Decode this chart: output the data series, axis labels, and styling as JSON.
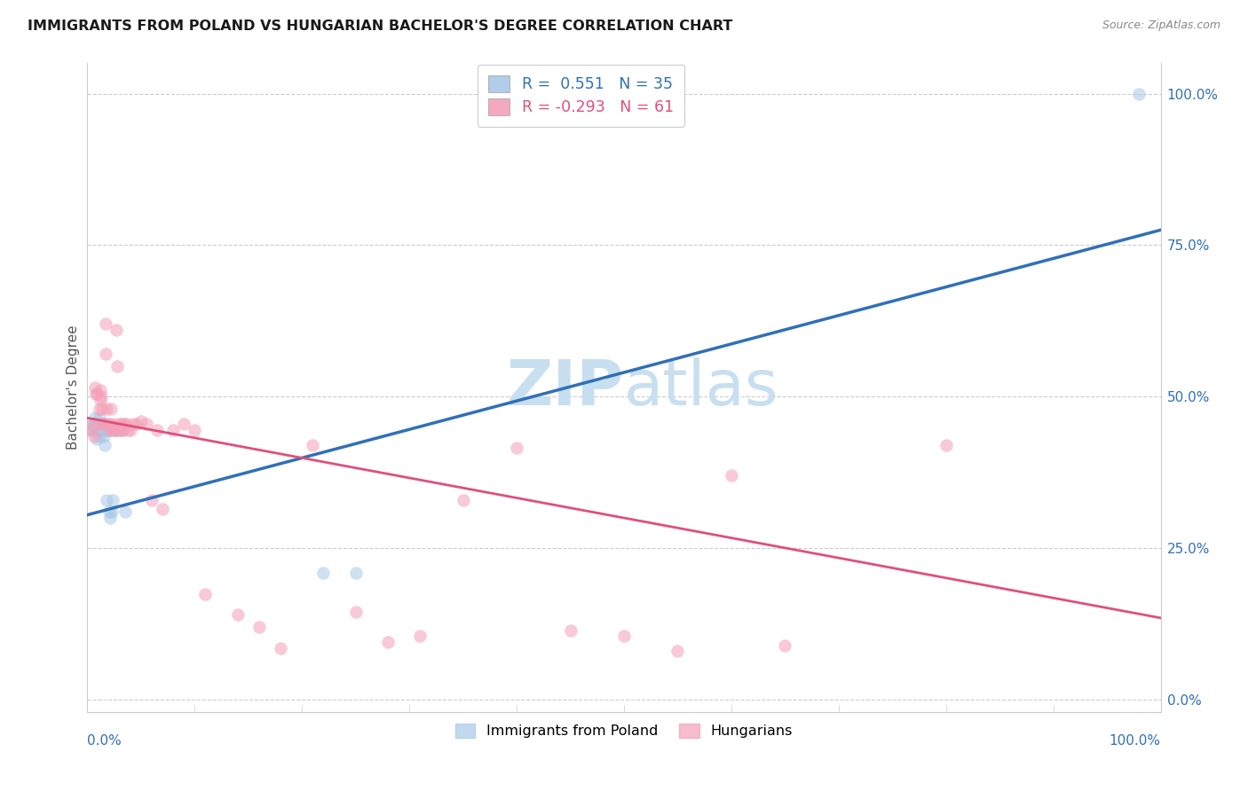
{
  "title": "IMMIGRANTS FROM POLAND VS HUNGARIAN BACHELOR'S DEGREE CORRELATION CHART",
  "source": "Source: ZipAtlas.com",
  "ylabel": "Bachelor's Degree",
  "ytick_vals": [
    0.0,
    0.25,
    0.5,
    0.75,
    1.0
  ],
  "ytick_labels": [
    "0.0%",
    "25.0%",
    "50.0%",
    "75.0%",
    "100.0%"
  ],
  "xlim": [
    0.0,
    1.0
  ],
  "ylim": [
    -0.02,
    1.05
  ],
  "blue_color": "#a8c8e8",
  "pink_color": "#f4a0b8",
  "blue_line_color": "#3070b8",
  "pink_line_color": "#e0507a",
  "watermark_color": "#c8dff0",
  "grid_color": "#cccccc",
  "poland_scatter_x": [
    0.004,
    0.005,
    0.005,
    0.006,
    0.007,
    0.007,
    0.008,
    0.009,
    0.01,
    0.011,
    0.011,
    0.012,
    0.012,
    0.013,
    0.014,
    0.015,
    0.015,
    0.016,
    0.016,
    0.017,
    0.018,
    0.019,
    0.02,
    0.021,
    0.022,
    0.023,
    0.024,
    0.026,
    0.028,
    0.03,
    0.033,
    0.035,
    0.22,
    0.25,
    0.98
  ],
  "poland_scatter_y": [
    0.445,
    0.445,
    0.455,
    0.455,
    0.455,
    0.465,
    0.445,
    0.43,
    0.455,
    0.435,
    0.465,
    0.445,
    0.455,
    0.455,
    0.455,
    0.455,
    0.435,
    0.445,
    0.42,
    0.445,
    0.33,
    0.445,
    0.31,
    0.3,
    0.445,
    0.31,
    0.33,
    0.445,
    0.445,
    0.445,
    0.445,
    0.31,
    0.21,
    0.21,
    1.0
  ],
  "hungarian_scatter_x": [
    0.004,
    0.005,
    0.006,
    0.007,
    0.008,
    0.009,
    0.01,
    0.011,
    0.012,
    0.012,
    0.013,
    0.014,
    0.015,
    0.016,
    0.017,
    0.017,
    0.018,
    0.019,
    0.02,
    0.021,
    0.022,
    0.023,
    0.024,
    0.025,
    0.026,
    0.027,
    0.028,
    0.03,
    0.031,
    0.032,
    0.033,
    0.034,
    0.036,
    0.038,
    0.04,
    0.043,
    0.046,
    0.05,
    0.055,
    0.06,
    0.065,
    0.07,
    0.08,
    0.09,
    0.1,
    0.11,
    0.14,
    0.16,
    0.18,
    0.21,
    0.25,
    0.28,
    0.31,
    0.35,
    0.4,
    0.45,
    0.5,
    0.55,
    0.6,
    0.65,
    0.8
  ],
  "hungarian_scatter_y": [
    0.445,
    0.455,
    0.435,
    0.515,
    0.505,
    0.505,
    0.455,
    0.48,
    0.495,
    0.51,
    0.5,
    0.48,
    0.455,
    0.455,
    0.62,
    0.57,
    0.48,
    0.455,
    0.445,
    0.455,
    0.48,
    0.45,
    0.445,
    0.455,
    0.445,
    0.61,
    0.55,
    0.455,
    0.445,
    0.455,
    0.445,
    0.455,
    0.455,
    0.445,
    0.445,
    0.455,
    0.455,
    0.46,
    0.455,
    0.33,
    0.445,
    0.315,
    0.445,
    0.455,
    0.445,
    0.175,
    0.14,
    0.12,
    0.085,
    0.42,
    0.145,
    0.095,
    0.105,
    0.33,
    0.415,
    0.115,
    0.105,
    0.08,
    0.37,
    0.09,
    0.42
  ],
  "blue_line_x": [
    0.0,
    1.0
  ],
  "blue_line_y": [
    0.305,
    0.775
  ],
  "pink_line_x": [
    0.0,
    1.0
  ],
  "pink_line_y": [
    0.465,
    0.135
  ],
  "marker_size": 110,
  "alpha": 0.55,
  "legend1_label": "R =  0.551   N = 35",
  "legend2_label": "R = -0.293   N = 61",
  "legend_label1": "Immigrants from Poland",
  "legend_label2": "Hungarians"
}
